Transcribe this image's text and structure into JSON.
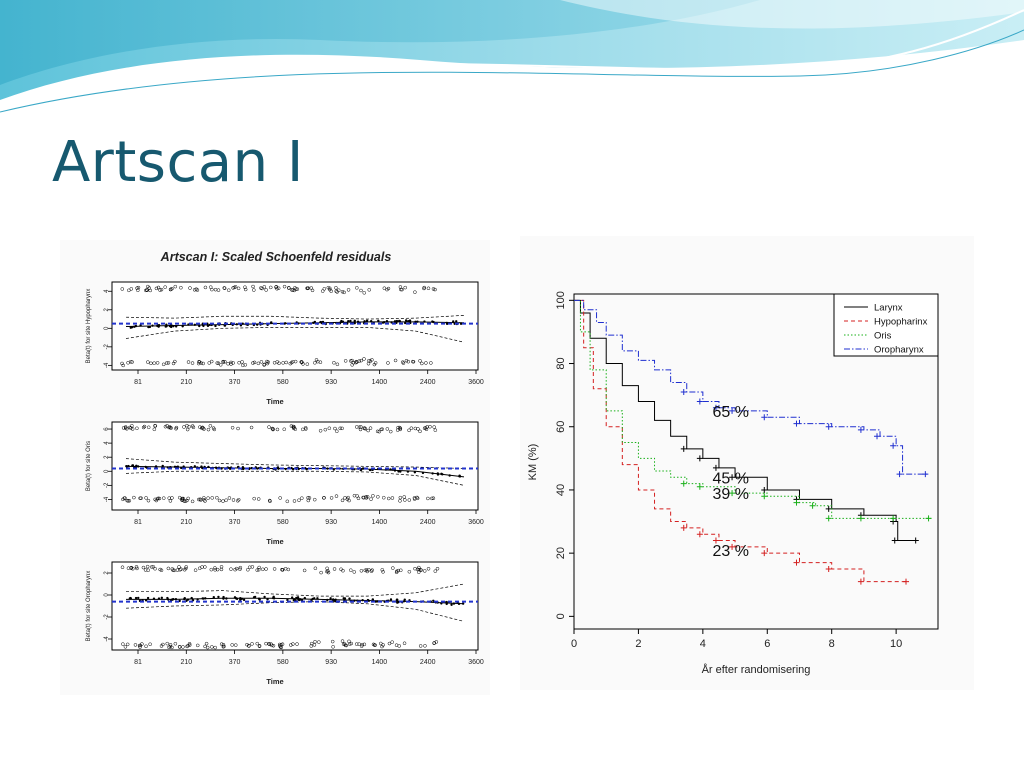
{
  "slide": {
    "title": "Artscan I"
  },
  "chart_data": [
    {
      "type": "scatter",
      "title": "Artscan I: Scaled Schoenfeld residuals",
      "panels": [
        {
          "ylabel": "Beta(t) for site Hypopharynx",
          "yticks": [
            "-4",
            "-2",
            "0",
            "2",
            "4"
          ],
          "ylim": [
            -4.5,
            5
          ],
          "xlabel": "Time",
          "xticks": [
            "81",
            "210",
            "370",
            "580",
            "930",
            "1400",
            "2400",
            "3600"
          ],
          "upper_cluster": 4.3,
          "lower_cluster": -3.8,
          "smooth": [
            0.2,
            0.3,
            0.4,
            0.5,
            0.6,
            0.7,
            0.7,
            0.6
          ],
          "band_upper": [
            1.2,
            1.1,
            1.3,
            1.3,
            1.1,
            1.0,
            1.1,
            1.4
          ],
          "band_lower": [
            -1.1,
            -0.3,
            0.0,
            0.1,
            0.1,
            0.1,
            -0.3,
            -1.5
          ],
          "coef": 0.5
        },
        {
          "ylabel": "Beta(t) for site Oris",
          "yticks": [
            "-4",
            "-2",
            "0",
            "2",
            "4",
            "6"
          ],
          "ylim": [
            -5.5,
            7
          ],
          "xlabel": "Time",
          "xticks": [
            "81",
            "210",
            "370",
            "580",
            "930",
            "1400",
            "2400",
            "3600"
          ],
          "upper_cluster": 6.2,
          "lower_cluster": -4.0,
          "smooth": [
            0.7,
            0.6,
            0.5,
            0.4,
            0.4,
            0.3,
            0.0,
            -0.8
          ],
          "band_upper": [
            1.8,
            1.3,
            1.1,
            0.9,
            0.8,
            0.7,
            0.6,
            0.4
          ],
          "band_lower": [
            -0.3,
            0.0,
            0.0,
            0.0,
            0.0,
            -0.1,
            -0.6,
            -2.0
          ],
          "coef": 0.4
        },
        {
          "ylabel": "Beta(t) for site Oropharynx",
          "yticks": [
            "-4",
            "-2",
            "0",
            "2"
          ],
          "ylim": [
            -5,
            3
          ],
          "xlabel": "Time",
          "xticks": [
            "81",
            "210",
            "370",
            "580",
            "930",
            "1400",
            "2400",
            "3600"
          ],
          "upper_cluster": 2.4,
          "lower_cluster": -4.6,
          "smooth": [
            -0.4,
            -0.4,
            -0.3,
            -0.3,
            -0.4,
            -0.5,
            -0.6,
            -0.8
          ],
          "band_upper": [
            0.3,
            0.3,
            0.4,
            0.1,
            -0.1,
            -0.1,
            0.2,
            1.0
          ],
          "band_lower": [
            -1.2,
            -1.0,
            -0.9,
            -0.7,
            -0.6,
            -0.8,
            -1.3,
            -2.4
          ],
          "coef": -0.6
        }
      ]
    },
    {
      "type": "line",
      "xlabel": "År efter randomisering",
      "ylabel": "KM (%)",
      "xlim": [
        0,
        11.3
      ],
      "ylim": [
        -4,
        102
      ],
      "xticks": [
        0,
        2,
        4,
        6,
        8,
        10
      ],
      "yticks": [
        0,
        20,
        40,
        60,
        80,
        100
      ],
      "legend_position": "top-right",
      "series": [
        {
          "name": "Larynx",
          "color": "#000000",
          "dash": "",
          "points": [
            [
              0,
              100
            ],
            [
              0.2,
              96
            ],
            [
              0.5,
              88
            ],
            [
              1.0,
              80
            ],
            [
              1.5,
              73
            ],
            [
              2.0,
              68
            ],
            [
              2.5,
              62
            ],
            [
              3.0,
              57
            ],
            [
              3.5,
              53
            ],
            [
              4.0,
              50
            ],
            [
              4.5,
              47
            ],
            [
              5.0,
              44
            ],
            [
              6.0,
              40
            ],
            [
              7.0,
              37
            ],
            [
              8.0,
              34
            ],
            [
              9.0,
              32
            ],
            [
              10.0,
              30
            ],
            [
              10.05,
              24
            ],
            [
              10.7,
              24
            ]
          ],
          "end_label": "45 %"
        },
        {
          "name": "Hypopharinx",
          "color": "#d42020",
          "dash": "4,3",
          "points": [
            [
              0,
              100
            ],
            [
              0.3,
              85
            ],
            [
              0.6,
              72
            ],
            [
              1.0,
              60
            ],
            [
              1.5,
              48
            ],
            [
              2.0,
              40
            ],
            [
              2.5,
              34
            ],
            [
              3.0,
              30
            ],
            [
              3.5,
              28
            ],
            [
              4.0,
              26
            ],
            [
              4.5,
              24
            ],
            [
              5.0,
              22
            ],
            [
              6.0,
              20
            ],
            [
              7.0,
              17
            ],
            [
              8.0,
              15
            ],
            [
              9.0,
              11
            ],
            [
              10.4,
              11
            ]
          ],
          "end_label": "23 %"
        },
        {
          "name": "Oris",
          "color": "#19b019",
          "dash": "1.5,2",
          "points": [
            [
              0,
              100
            ],
            [
              0.2,
              90
            ],
            [
              0.5,
              78
            ],
            [
              1.0,
              65
            ],
            [
              1.5,
              55
            ],
            [
              2.0,
              50
            ],
            [
              2.5,
              46
            ],
            [
              3.0,
              44
            ],
            [
              3.5,
              42
            ],
            [
              4.0,
              41
            ],
            [
              5.0,
              39
            ],
            [
              6.0,
              38
            ],
            [
              7.0,
              36
            ],
            [
              7.5,
              35
            ],
            [
              8.0,
              31
            ],
            [
              9.0,
              31
            ],
            [
              10.0,
              31
            ],
            [
              11.1,
              31
            ]
          ],
          "end_label": "39 %"
        },
        {
          "name": "Oropharynx",
          "color": "#1f2fd0",
          "dash": "6,2,1.5,2",
          "points": [
            [
              0,
              100
            ],
            [
              0.3,
              97
            ],
            [
              0.7,
              93
            ],
            [
              1.0,
              89
            ],
            [
              1.5,
              84
            ],
            [
              2.0,
              81
            ],
            [
              2.5,
              78
            ],
            [
              3.0,
              74
            ],
            [
              3.5,
              71
            ],
            [
              4.0,
              68
            ],
            [
              4.5,
              66
            ],
            [
              5.0,
              65
            ],
            [
              6.0,
              63
            ],
            [
              7.0,
              61
            ],
            [
              8.0,
              60
            ],
            [
              9.0,
              59
            ],
            [
              9.5,
              57
            ],
            [
              10.0,
              54
            ],
            [
              10.2,
              45
            ],
            [
              11.0,
              45
            ]
          ],
          "end_label": "65 %"
        }
      ]
    }
  ]
}
